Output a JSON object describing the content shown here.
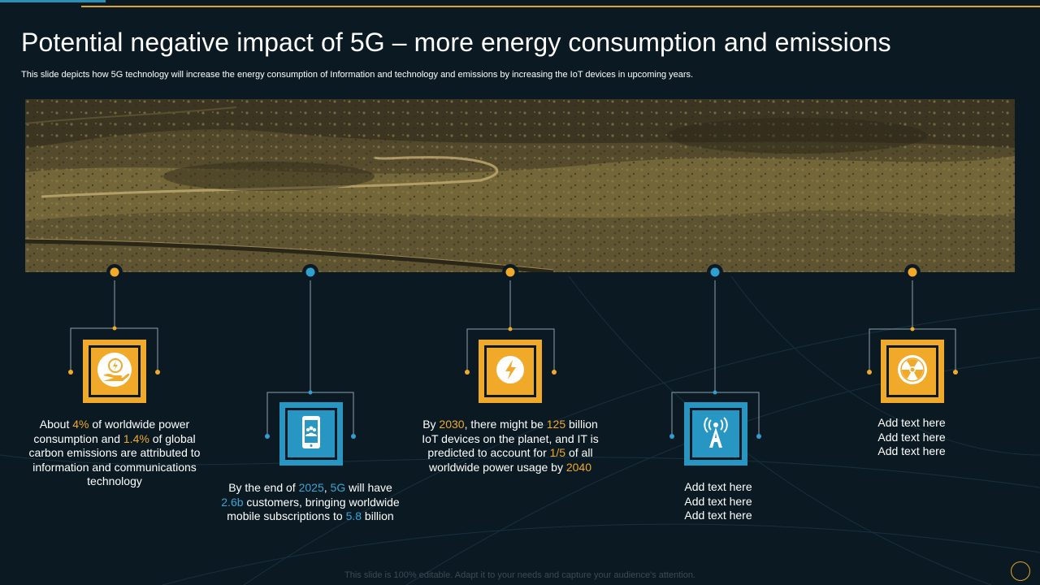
{
  "title": "Potential negative impact of 5G – more energy consumption and emissions",
  "subtitle": "This slide depicts how 5G technology will increase the energy consumption of Information and technology and emissions by increasing the IoT devices in upcoming years.",
  "colors": {
    "accent_gold": "#f0a928",
    "accent_blue": "#2796c3",
    "background": "#0b1a22"
  },
  "items": [
    {
      "icon": "energy-hand-icon",
      "color": "gold",
      "parts": [
        {
          "t": "About "
        },
        {
          "t": "4%",
          "hl": "gold"
        },
        {
          "t": " of worldwide power consumption and "
        },
        {
          "t": "1.4%",
          "hl": "gold"
        },
        {
          "t": " of global carbon emissions are attributed to information and communications technology"
        }
      ]
    },
    {
      "icon": "mobile-users-icon",
      "color": "blue",
      "parts": [
        {
          "t": "By the end of "
        },
        {
          "t": "2025",
          "hl": "blue"
        },
        {
          "t": ", "
        },
        {
          "t": "5G",
          "hl": "blue"
        },
        {
          "t": " will have "
        },
        {
          "t": "2.6b",
          "hl": "blue"
        },
        {
          "t": " customers, bringing worldwide mobile subscriptions to "
        },
        {
          "t": "5.8",
          "hl": "blue"
        },
        {
          "t": " billion"
        }
      ]
    },
    {
      "icon": "lightning-icon",
      "color": "gold",
      "parts": [
        {
          "t": "By "
        },
        {
          "t": "2030",
          "hl": "gold"
        },
        {
          "t": ", there might be "
        },
        {
          "t": "125",
          "hl": "gold"
        },
        {
          "t": " billion IoT devices on the planet, and IT is predicted to account for "
        },
        {
          "t": "1/5",
          "hl": "gold"
        },
        {
          "t": " of all worldwide power usage by "
        },
        {
          "t": "2040",
          "hl": "gold"
        }
      ]
    },
    {
      "icon": "antenna-icon",
      "color": "blue",
      "lines": [
        "Add text here",
        "Add text here",
        "Add text here"
      ]
    },
    {
      "icon": "nuclear-icon",
      "color": "gold",
      "lines": [
        "Add text here",
        "Add text here",
        "Add text here"
      ]
    }
  ],
  "footer": "This slide is 100% editable. Adapt it to your needs and capture your audience's attention."
}
